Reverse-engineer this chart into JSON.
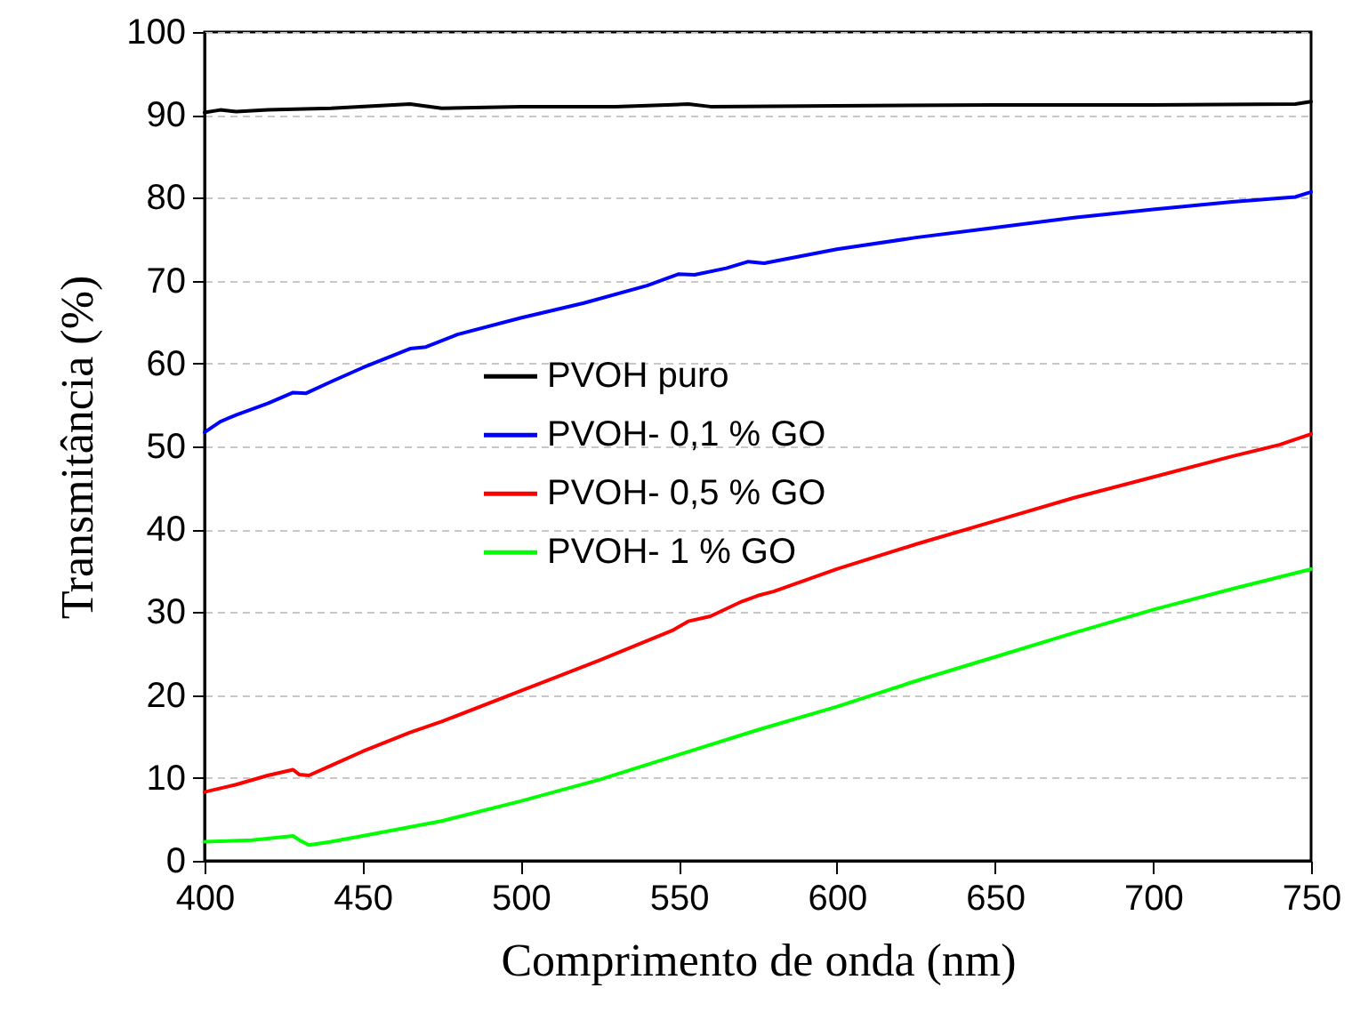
{
  "chart_data": {
    "type": "line",
    "xlabel": "Comprimento de onda (nm)",
    "ylabel": "Transmitância (%)",
    "xlim": [
      400,
      750
    ],
    "xticks": [
      400,
      450,
      500,
      550,
      600,
      650,
      700,
      750
    ],
    "ylim": [
      0,
      100
    ],
    "yticks": [
      0,
      10,
      20,
      30,
      40,
      50,
      60,
      70,
      80,
      90,
      100
    ],
    "grid": "y",
    "legend": "center",
    "line_style": "solid",
    "marker": "none",
    "series": [
      {
        "name": "PVOH puro",
        "color": "#000000",
        "x": [
          400,
          405,
          410,
          420,
          440,
          465,
          475,
          500,
          530,
          553,
          560,
          600,
          650,
          700,
          745,
          750
        ],
        "values": [
          90.3,
          90.6,
          90.4,
          90.6,
          90.8,
          91.3,
          90.8,
          91.0,
          91.0,
          91.3,
          91.0,
          91.1,
          91.2,
          91.2,
          91.3,
          91.6
        ]
      },
      {
        "name": "PVOH- 0,1 % GO",
        "color": "#0000ff",
        "x": [
          400,
          405,
          410,
          420,
          428,
          432,
          440,
          450,
          465,
          470,
          480,
          500,
          520,
          540,
          550,
          555,
          565,
          572,
          577,
          600,
          625,
          650,
          675,
          700,
          725,
          745,
          750
        ],
        "values": [
          51.7,
          53.0,
          53.8,
          55.2,
          56.5,
          56.4,
          57.8,
          59.5,
          61.8,
          62.0,
          63.5,
          65.5,
          67.3,
          69.4,
          70.8,
          70.7,
          71.5,
          72.3,
          72.1,
          73.8,
          75.2,
          76.4,
          77.6,
          78.6,
          79.5,
          80.1,
          80.7
        ]
      },
      {
        "name": "PVOH- 0,5 % GO",
        "color": "#ff0000",
        "x": [
          400,
          410,
          420,
          428,
          430,
          433,
          440,
          450,
          465,
          475,
          500,
          525,
          548,
          553,
          560,
          570,
          575,
          580,
          600,
          625,
          650,
          675,
          700,
          725,
          740,
          750
        ],
        "values": [
          8.3,
          9.2,
          10.3,
          11.0,
          10.4,
          10.3,
          11.5,
          13.2,
          15.5,
          16.8,
          20.5,
          24.2,
          27.8,
          28.9,
          29.5,
          31.3,
          32.0,
          32.5,
          35.2,
          38.2,
          41.0,
          43.8,
          46.3,
          48.8,
          50.2,
          51.5
        ]
      },
      {
        "name": "PVOH- 1 % GO",
        "color": "#00ff00",
        "x": [
          400,
          415,
          428,
          430,
          433,
          440,
          450,
          475,
          500,
          525,
          550,
          575,
          600,
          625,
          650,
          675,
          700,
          725,
          750
        ],
        "values": [
          2.3,
          2.5,
          3.0,
          2.5,
          1.9,
          2.3,
          3.0,
          4.8,
          7.2,
          9.8,
          12.8,
          15.8,
          18.6,
          21.7,
          24.6,
          27.5,
          30.3,
          32.8,
          35.2
        ]
      }
    ]
  }
}
